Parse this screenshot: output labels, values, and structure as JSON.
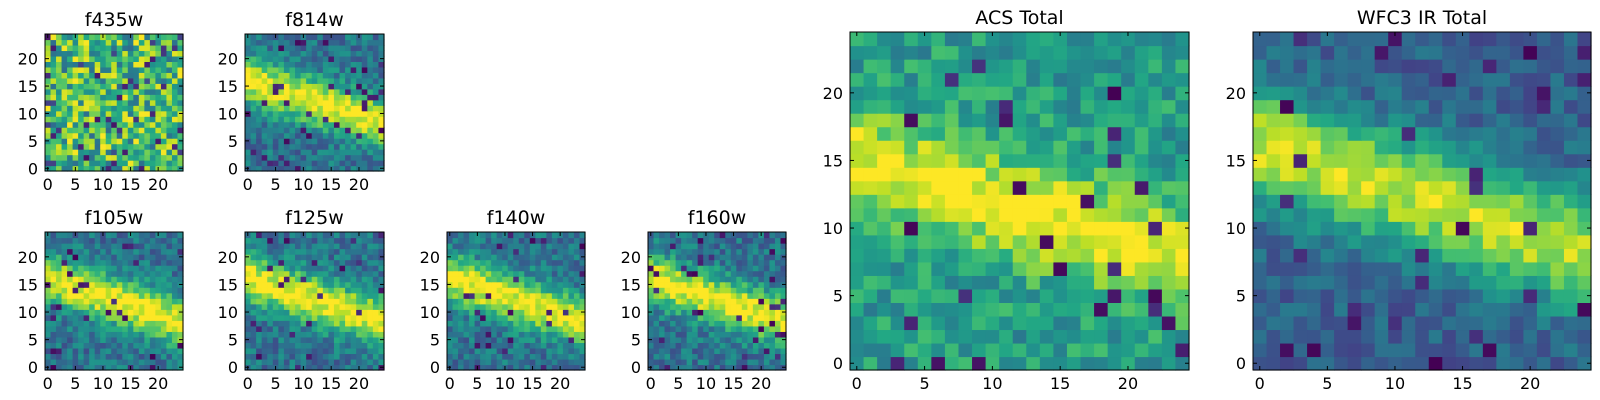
{
  "chart_data": [
    {
      "type": "heatmap",
      "title": "f435w",
      "xticks": [
        "0",
        "5",
        "10",
        "15",
        "20"
      ],
      "yticks": [
        "0",
        "5",
        "10",
        "15",
        "20"
      ],
      "xlim": [
        0,
        25
      ],
      "ylim": [
        0,
        25
      ],
      "colormap": "viridis",
      "pattern": "noise",
      "seed": 11
    },
    {
      "type": "heatmap",
      "title": "f814w",
      "xticks": [
        "0",
        "5",
        "10",
        "15",
        "20"
      ],
      "yticks": [
        "0",
        "5",
        "10",
        "15",
        "20"
      ],
      "xlim": [
        0,
        25
      ],
      "ylim": [
        0,
        25
      ],
      "colormap": "viridis",
      "pattern": "band",
      "seed": 23
    },
    {
      "type": "heatmap",
      "title": "f105w",
      "xticks": [
        "0",
        "5",
        "10",
        "15",
        "20"
      ],
      "yticks": [
        "0",
        "5",
        "10",
        "15",
        "20"
      ],
      "xlim": [
        0,
        25
      ],
      "ylim": [
        0,
        25
      ],
      "colormap": "viridis",
      "pattern": "band",
      "seed": 37
    },
    {
      "type": "heatmap",
      "title": "f125w",
      "xticks": [
        "0",
        "5",
        "10",
        "15",
        "20"
      ],
      "yticks": [
        "0",
        "5",
        "10",
        "15",
        "20"
      ],
      "xlim": [
        0,
        25
      ],
      "ylim": [
        0,
        25
      ],
      "colormap": "viridis",
      "pattern": "band",
      "seed": 41
    },
    {
      "type": "heatmap",
      "title": "f140w",
      "xticks": [
        "0",
        "5",
        "10",
        "15",
        "20"
      ],
      "yticks": [
        "0",
        "5",
        "10",
        "15",
        "20"
      ],
      "xlim": [
        0,
        25
      ],
      "ylim": [
        0,
        25
      ],
      "colormap": "viridis",
      "pattern": "band",
      "seed": 53
    },
    {
      "type": "heatmap",
      "title": "f160w",
      "xticks": [
        "0",
        "5",
        "10",
        "15",
        "20"
      ],
      "yticks": [
        "0",
        "5",
        "10",
        "15",
        "20"
      ],
      "xlim": [
        0,
        25
      ],
      "ylim": [
        0,
        25
      ],
      "colormap": "viridis",
      "pattern": "band",
      "seed": 67
    },
    {
      "type": "heatmap",
      "title": "ACS Total",
      "xticks": [
        "0",
        "5",
        "10",
        "15",
        "20"
      ],
      "yticks": [
        "0",
        "5",
        "10",
        "15",
        "20"
      ],
      "xlim": [
        0,
        25
      ],
      "ylim": [
        0,
        25
      ],
      "colormap": "viridis",
      "pattern": "acs",
      "seed": 79
    },
    {
      "type": "heatmap",
      "title": "WFC3 IR Total",
      "xticks": [
        "0",
        "5",
        "10",
        "15",
        "20"
      ],
      "yticks": [
        "0",
        "5",
        "10",
        "15",
        "20"
      ],
      "xlim": [
        0,
        25
      ],
      "ylim": [
        0,
        25
      ],
      "colormap": "viridis",
      "pattern": "ir",
      "seed": 97
    }
  ]
}
